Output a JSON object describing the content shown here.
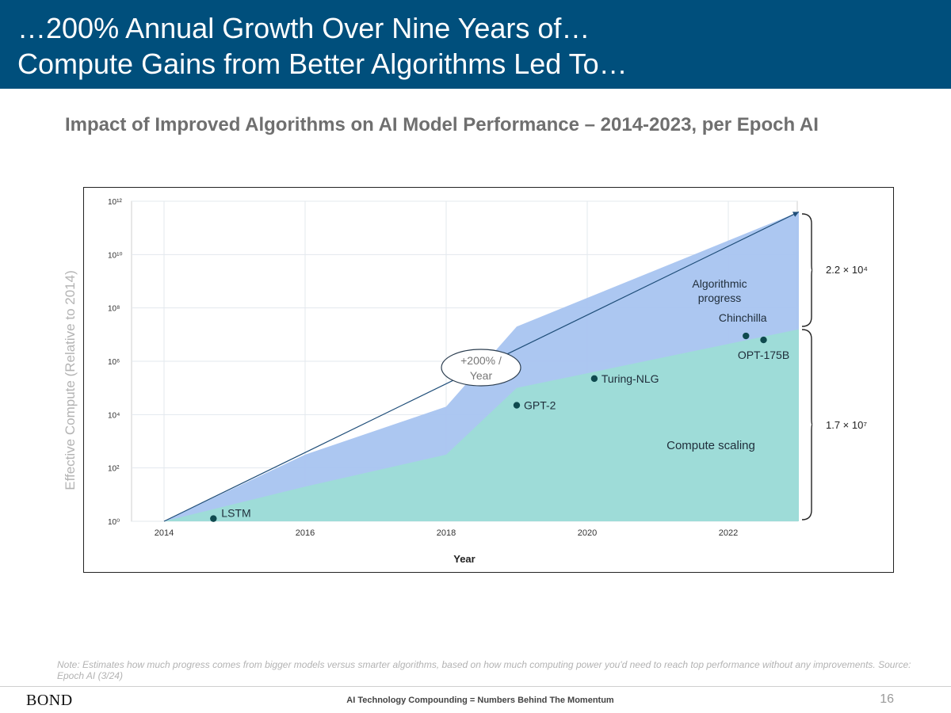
{
  "header": {
    "line1": "…200% Annual Growth Over Nine Years of…",
    "line2": "Compute Gains from Better Algorithms Led To…"
  },
  "chart_title": "Impact of Improved Algorithms on AI Model Performance – 2014-2023, per Epoch AI",
  "note": "Note: Estimates how much progress comes from bigger models versus smarter algorithms, based on how much computing power you'd need to reach top performance without any improvements. Source: Epoch AI (3/24)",
  "footer": {
    "logo": "BOND",
    "center": "AI Technology Compounding = Numbers Behind The Momentum",
    "page": "16"
  },
  "colors": {
    "header_bg": "#004f7c",
    "algorithmic_progress": "#a8c4f0",
    "compute_scaling": "#9edcd8",
    "trend_line": "#1f4e79",
    "marker": "#0f4a4f"
  },
  "chart_data": {
    "type": "area",
    "xlabel": "Year",
    "ylabel": "Effective Compute (Relative to 2014)",
    "y_scale": "log10",
    "xlim": [
      2014,
      2023
    ],
    "ylim_log10": [
      0,
      12
    ],
    "x_ticks": [
      2014,
      2016,
      2018,
      2020,
      2022
    ],
    "y_ticks_log10": [
      0,
      2,
      4,
      6,
      8,
      10,
      12
    ],
    "grid": true,
    "series": [
      {
        "name": "Compute scaling",
        "x": [
          2014,
          2016,
          2018,
          2019,
          2023
        ],
        "log10_y": [
          0,
          1.3,
          2.5,
          5.0,
          7.2
        ]
      },
      {
        "name": "Algorithmic progress",
        "x": [
          2014,
          2016,
          2018,
          2019,
          2023
        ],
        "log10_y": [
          0,
          2.5,
          4.3,
          7.3,
          11.6
        ]
      }
    ],
    "trend_line": {
      "x": [
        2014,
        2023
      ],
      "log10_y": [
        0,
        11.6
      ],
      "label": "+200% / Year"
    },
    "points": [
      {
        "label": "LSTM",
        "x": 2014.7,
        "log10_y": 0.1
      },
      {
        "label": "GPT-2",
        "x": 2019.0,
        "log10_y": 4.35
      },
      {
        "label": "Turing-NLG",
        "x": 2020.1,
        "log10_y": 5.35
      },
      {
        "label": "Chinchilla",
        "x": 2022.25,
        "log10_y": 6.95
      },
      {
        "label": "OPT-175B",
        "x": 2022.5,
        "log10_y": 6.8
      }
    ],
    "annotations": [
      "Algorithmic progress",
      "Compute scaling"
    ],
    "bracket_labels": [
      "2.2 × 10⁴",
      "1.7 × 10⁷"
    ]
  }
}
